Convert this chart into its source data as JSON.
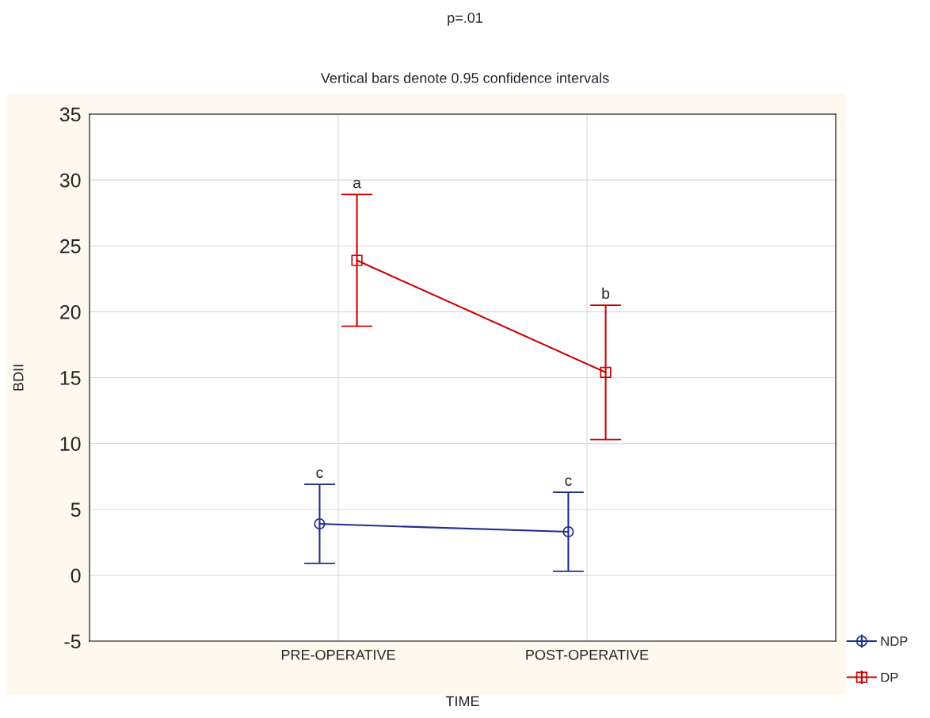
{
  "chart_data": {
    "type": "line",
    "title": "p=.01",
    "subtitle": "Vertical bars denote 0.95 confidence intervals",
    "xlabel": "TIME",
    "ylabel": "BDII",
    "categories": [
      "PRE-OPERATIVE",
      "POST-OPERATIVE"
    ],
    "series": [
      {
        "name": "NDP",
        "color": "#1f2f8f",
        "marker": "circle",
        "values": [
          3.9,
          3.3
        ],
        "errors": [
          [
            0.9,
            6.9
          ],
          [
            0.3,
            6.3
          ]
        ]
      },
      {
        "name": "DP",
        "color": "#cc0000",
        "marker": "square",
        "values": [
          23.9,
          15.4
        ],
        "errors": [
          [
            18.9,
            28.9
          ],
          [
            10.3,
            20.5
          ]
        ]
      }
    ],
    "ylim": [
      -5,
      35
    ],
    "yticks": [
      -5,
      0,
      5,
      10,
      15,
      20,
      25,
      30,
      35
    ],
    "grid": true,
    "legend": "bottom right",
    "line_style": "solid",
    "annotations": [
      "a",
      "b",
      "c",
      "c"
    ]
  }
}
